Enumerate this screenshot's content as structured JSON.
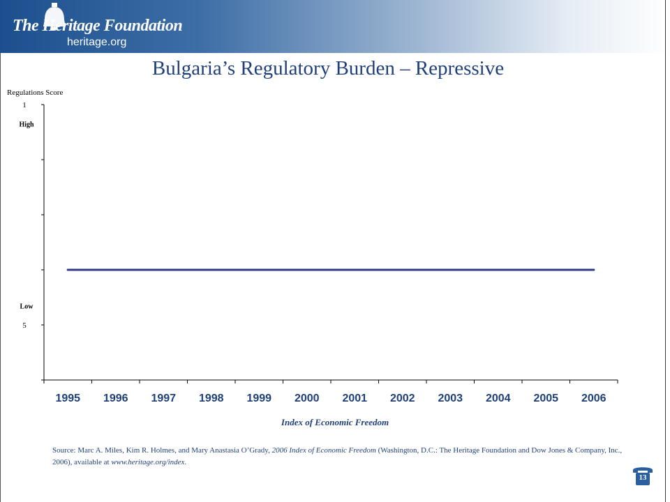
{
  "header": {
    "logo_name": "The Heritage Foundation",
    "logo_url_text": "heritage.org",
    "logo_icon": "liberty-bell-icon"
  },
  "slide": {
    "title": "Bulgaria’s Regulatory Burden – Repressive",
    "page_number": "13"
  },
  "colors": {
    "banner_dark": "#1c4f8e",
    "title": "#1f3f7a",
    "series_line": "#2e3a8c",
    "axis": "#000000"
  },
  "chart_data": {
    "type": "line",
    "title": "Bulgaria’s Regulatory Burden – Repressive",
    "ylabel": "Regulations Score",
    "xlabel": "Index of Economic Freedom",
    "ylim": [
      1,
      6
    ],
    "y_inverted": true,
    "y_tick_labels": [
      {
        "value": 1,
        "label": "1"
      },
      {
        "value": 5,
        "label": "5"
      }
    ],
    "y_extra_labels": [
      {
        "value": 1.35,
        "label": "High"
      },
      {
        "value": 4.65,
        "label": "Low"
      }
    ],
    "y_ticks": [
      1,
      2,
      3,
      4,
      5,
      6
    ],
    "categories": [
      "1995",
      "1996",
      "1997",
      "1998",
      "1999",
      "2000",
      "2001",
      "2002",
      "2003",
      "2004",
      "2005",
      "2006"
    ],
    "series": [
      {
        "values": [
          4,
          4,
          4,
          4,
          4,
          4,
          4,
          4,
          4,
          4,
          4,
          4
        ]
      }
    ],
    "grid": false,
    "legend": "none"
  },
  "source": {
    "prefix": "Source: Marc A. Miles, Kim R. Holmes, and Mary Anastasia O’Grady, ",
    "book": "2006 Index of Economic Freedom",
    "middle": " (Washington, D.C.: The Heritage Foundation and Dow Jones & Company, Inc., 2006), available at ",
    "url": "www.heritage.org/index",
    "suffix": "."
  }
}
